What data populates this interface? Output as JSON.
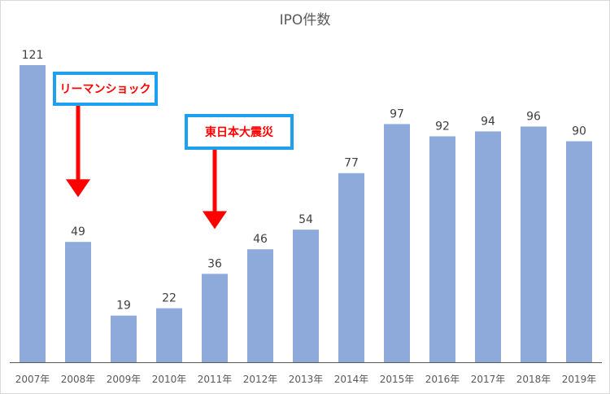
{
  "chart_data": {
    "type": "bar",
    "title": "IPO件数",
    "categories": [
      "2007年",
      "2008年",
      "2009年",
      "2010年",
      "2011年",
      "2012年",
      "2013年",
      "2014年",
      "2015年",
      "2016年",
      "2017年",
      "2018年",
      "2019年"
    ],
    "values": [
      121,
      49,
      19,
      22,
      36,
      46,
      54,
      77,
      97,
      92,
      94,
      96,
      90
    ],
    "ylim": [
      0,
      121
    ],
    "grid": false,
    "legend": "none",
    "bar_color": "#8eaadb"
  },
  "annotations": [
    {
      "text": "リーマンショック",
      "category": "2008年",
      "border_color": "#1ea0f0",
      "text_color": "#ff0000",
      "arrow_color": "#ff0000"
    },
    {
      "text": "東日本大震災",
      "category": "2011年",
      "border_color": "#1ea0f0",
      "text_color": "#ff0000",
      "arrow_color": "#ff0000"
    }
  ]
}
